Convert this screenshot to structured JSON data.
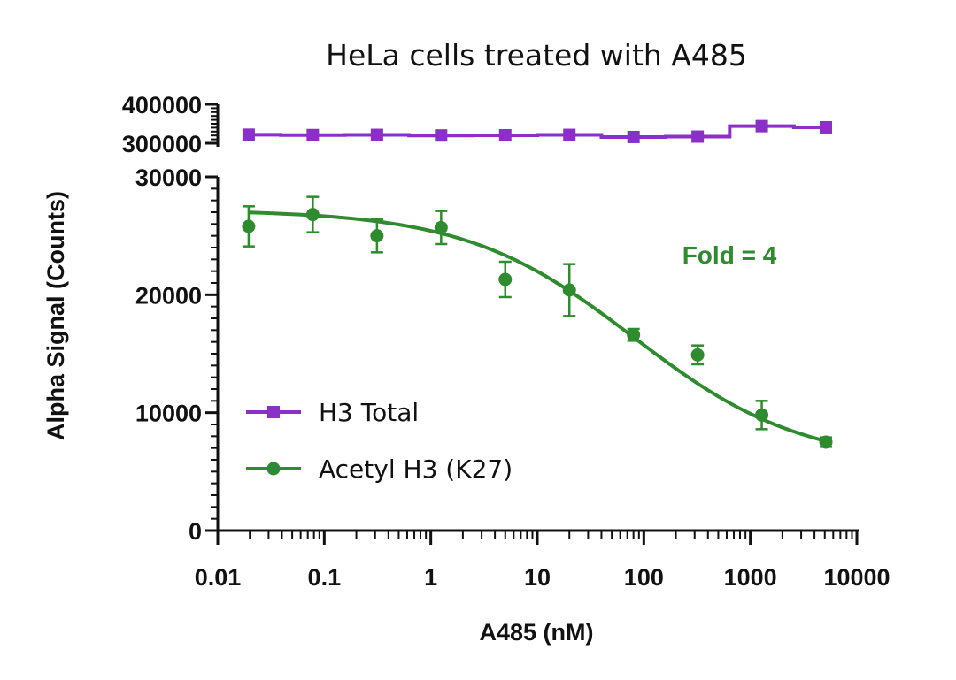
{
  "chart_data": {
    "type": "scatter",
    "title": "HeLa cells treated with A485",
    "xlabel": "A485 (nM)",
    "ylabel": "Alpha Signal (Counts)",
    "xscale": "log",
    "xlim": [
      0.01,
      10000
    ],
    "x_ticks": [
      "0.01",
      "0.1",
      "1",
      "10",
      "100",
      "1000",
      "10000"
    ],
    "y_axis_broken": true,
    "y_upper": {
      "ylim": [
        300000,
        400000
      ],
      "ticks": [
        "300000",
        "400000"
      ]
    },
    "y_lower": {
      "ylim": [
        0,
        30000
      ],
      "ticks": [
        "0",
        "10000",
        "20000",
        "30000"
      ]
    },
    "colors": {
      "H3 Total": "#8B2FC9",
      "Acetyl H3 (K27)": "#2E8B2E"
    },
    "legend_position": "lower-left",
    "annotation": "Fold = 4",
    "series": [
      {
        "name": "H3 Total",
        "marker": "square",
        "line": "step",
        "x": [
          0.0195,
          0.078,
          0.3125,
          1.25,
          5,
          20,
          80,
          320,
          1280,
          5120
        ],
        "y": [
          322000,
          321000,
          321500,
          320000,
          320500,
          321500,
          316000,
          317000,
          344000,
          341000
        ]
      },
      {
        "name": "Acetyl H3 (K27)",
        "marker": "circle",
        "line": "fit",
        "x": [
          0.0195,
          0.078,
          0.3125,
          1.25,
          5,
          20,
          80,
          320,
          1280,
          5120
        ],
        "y": [
          25800,
          26800,
          25000,
          25700,
          21300,
          20400,
          16600,
          14900,
          9800,
          7500
        ],
        "error": [
          1700,
          1500,
          1400,
          1400,
          1500,
          2200,
          500,
          800,
          1200,
          400
        ]
      }
    ]
  }
}
